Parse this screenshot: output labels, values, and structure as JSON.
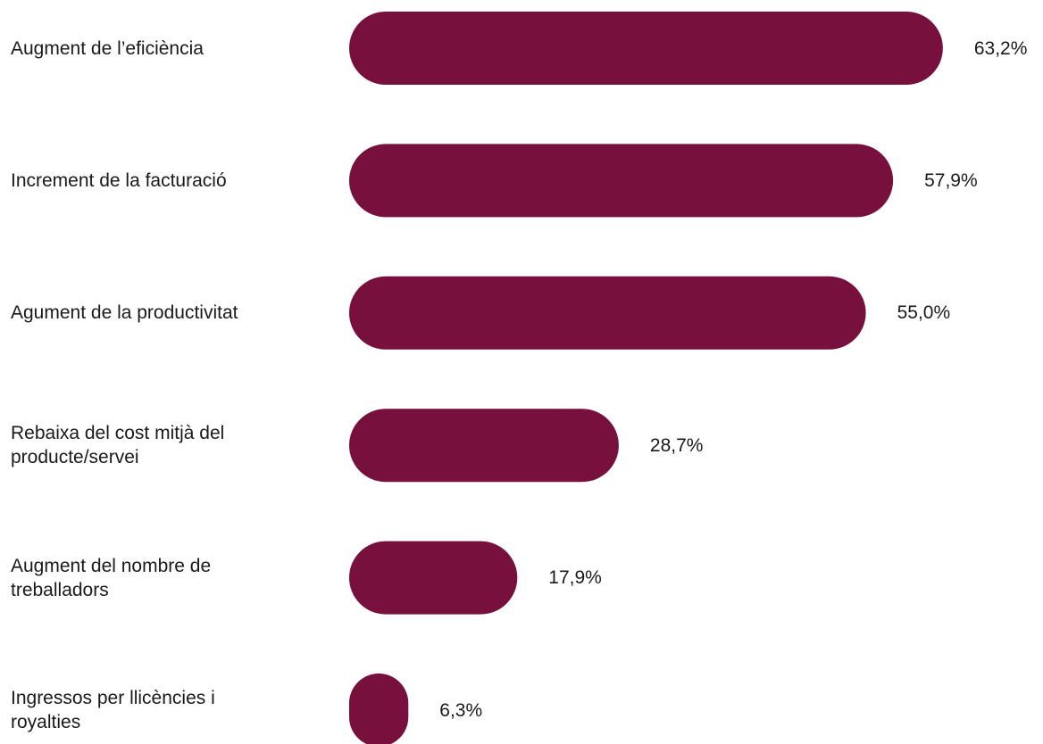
{
  "chart_data": {
    "type": "bar",
    "orientation": "horizontal",
    "categories": [
      "Augment de l’eficiència",
      "Increment de la facturació",
      "Agument de la productivitat",
      "Rebaixa del cost mitjà del producte/servei",
      "Augment del nombre de treballadors",
      "Ingressos per llicències i royalties"
    ],
    "display_categories": [
      "Augment de l’eficiència",
      "Increment de la facturació",
      "Agument de la productivitat",
      "Rebaixa del cost mitjà del\nproducte/servei",
      "Augment del nombre de\ntreballadors",
      "Ingressos per llicències i\nroyalties"
    ],
    "values": [
      63.2,
      57.9,
      55.0,
      28.7,
      17.9,
      6.3
    ],
    "value_labels": [
      "63,2%",
      "57,9%",
      "55,0%",
      "28,7%",
      "17,9%",
      "6,3%"
    ],
    "unit": "%",
    "color": "#77103c",
    "grid": false,
    "legend": "none"
  }
}
